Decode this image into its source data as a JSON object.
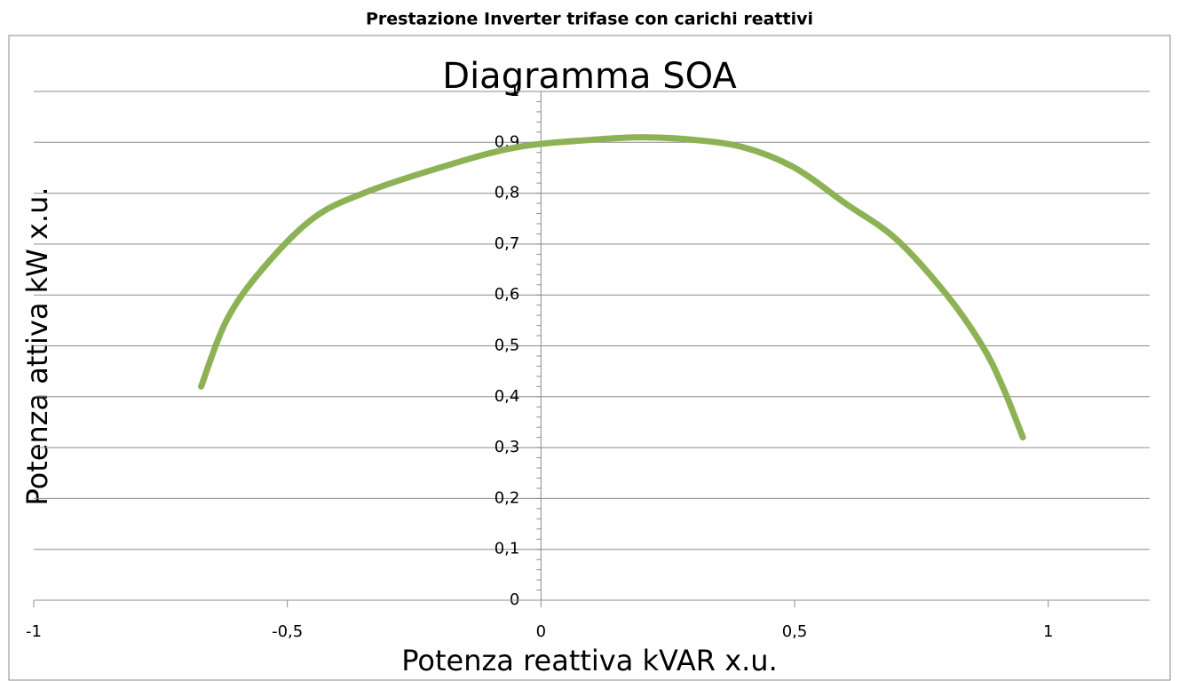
{
  "chart_data": {
    "type": "line",
    "header": "Prestazione Inverter trifase con carichi reattivi",
    "title": "Diagramma  SOA",
    "x_label": "Potenza reattiva kVAR x.u.",
    "y_label": "Potenza attiva kW x.u.",
    "x": [
      -0.67,
      -0.62,
      -0.55,
      -0.45,
      -0.35,
      -0.2,
      -0.05,
      0.1,
      0.2,
      0.3,
      0.4,
      0.5,
      0.6,
      0.7,
      0.8,
      0.87,
      0.91,
      0.95
    ],
    "series": [
      {
        "color": "#8db255",
        "values": [
          0.42,
          0.55,
          0.65,
          0.75,
          0.8,
          0.85,
          0.89,
          0.905,
          0.91,
          0.905,
          0.89,
          0.85,
          0.78,
          0.71,
          0.6,
          0.5,
          0.42,
          0.32
        ]
      }
    ],
    "xlim": [
      -1,
      1.2
    ],
    "ylim": [
      0,
      1
    ],
    "xticks": [
      -1,
      {
        "value": -0.5,
        "label": "-0,5"
      },
      0,
      {
        "value": 0.5,
        "label": "0,5"
      },
      1
    ],
    "yticks": [
      0,
      {
        "value": 0.1,
        "label": "0,1"
      },
      {
        "value": 0.2,
        "label": "0,2"
      },
      {
        "value": 0.3,
        "label": "0,3"
      },
      {
        "value": 0.4,
        "label": "0,4"
      },
      {
        "value": 0.5,
        "label": "0,5"
      },
      {
        "value": 0.6,
        "label": "0,6"
      },
      {
        "value": 0.7,
        "label": "0,7"
      },
      {
        "value": 0.8,
        "label": "0,8"
      },
      {
        "value": 0.9,
        "label": "0,9"
      },
      1
    ],
    "grid": true
  }
}
